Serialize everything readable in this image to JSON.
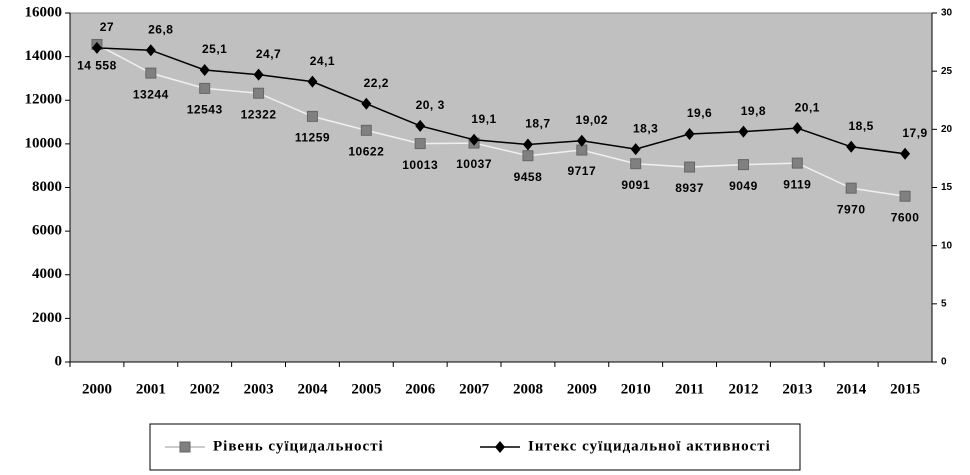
{
  "chart_data": {
    "type": "line",
    "categories": [
      "2000",
      "2001",
      "2002",
      "2003",
      "2004",
      "2005",
      "2006",
      "2007",
      "2008",
      "2009",
      "2010",
      "2011",
      "2012",
      "2013",
      "2014",
      "2015"
    ],
    "series": [
      {
        "name": "Рівень суїцидальності",
        "color": "#808080",
        "line_color": "#f0f0f0",
        "marker": "square",
        "values": [
          14558,
          13244,
          12543,
          12322,
          11259,
          10622,
          10013,
          10037,
          9458,
          9717,
          9091,
          8937,
          9049,
          9119,
          7970,
          7600
        ],
        "value_labels": [
          "14 558",
          "13244",
          "12543",
          "12322",
          "11259",
          "10622",
          "10013",
          "10037",
          "9458",
          "9717",
          "9091",
          "8937",
          "9049",
          "9119",
          "7970",
          "7600"
        ]
      },
      {
        "name": "Інтекс суїцидальної активності",
        "color": "#000000",
        "line_color": "#000000",
        "marker": "diamond",
        "axis": "y2",
        "values": [
          27,
          26.8,
          25.1,
          24.7,
          24.1,
          22.2,
          20.3,
          19.1,
          18.7,
          19.02,
          18.3,
          19.6,
          19.8,
          20.1,
          18.5,
          17.9
        ],
        "value_labels": [
          "27",
          "26,8",
          "25,1",
          "24,7",
          "24,1",
          "22,2",
          "20, 3",
          "19,1",
          "18,7",
          "19,02",
          "18,3",
          "19,6",
          "19,8",
          "20,1",
          "18,5",
          "17,9"
        ]
      }
    ],
    "ylim": [
      0,
      16000
    ],
    "yticks": [
      0,
      2000,
      4000,
      6000,
      8000,
      10000,
      12000,
      14000,
      16000
    ],
    "y2lim": [
      0,
      30
    ],
    "y2ticks": [
      0,
      5,
      10,
      15,
      20,
      25,
      30
    ],
    "plot_background": "#c0c0c0",
    "legend": "bottom"
  }
}
